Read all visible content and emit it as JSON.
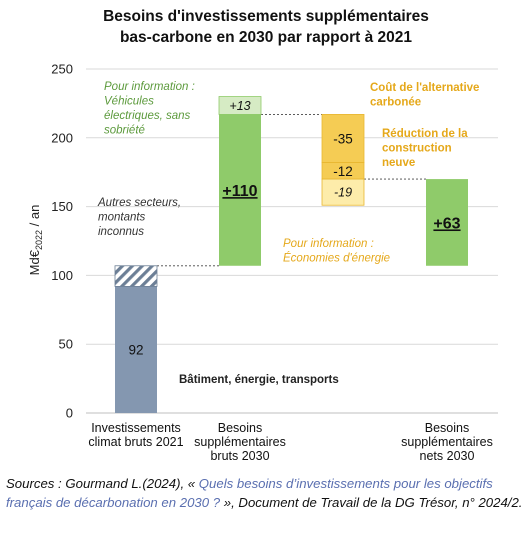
{
  "title_line1": "Besoins d'investissements supplémentaires",
  "title_line2": "bas-carbone en 2030 par rapport à 2021",
  "source": {
    "part1": "Sources : Gourmand L.(2024), « ",
    "link": "Quels besoins d’investissements pour les objectifs français de décarbonation en 2030 ?",
    "part2": " », Document de Travail de la DG Trésor, n° 2024/2."
  },
  "colors": {
    "blue": "#8497b0",
    "green": "#8fcb6a",
    "green_light": "#d6ebc4",
    "orange": "#f5cc54",
    "yellow_light": "#fdecaa",
    "hatch": "#6c7f96",
    "green_text": "#5c9a3c",
    "orange_text": "#e5a81a",
    "grid": "#d9d9d9"
  },
  "chart_data": {
    "type": "bar",
    "subtype": "waterfall",
    "ylabel": "Md€2022 / an",
    "ylabel_main": "Md€",
    "ylabel_sub": "2022",
    "ylabel_rest": " / an",
    "ylim": [
      0,
      250
    ],
    "yticks": [
      0,
      50,
      100,
      150,
      200,
      250
    ],
    "grid": true,
    "categories": [
      [
        "Investissements",
        "climat bruts 2021"
      ],
      [
        "Besoins",
        "supplémentaires",
        "bruts 2030"
      ],
      [
        "",
        ""
      ],
      [
        "Besoins",
        "supplémentaires",
        "nets 2030"
      ]
    ],
    "segments": [
      {
        "cat": 0,
        "base": 0,
        "value": 92,
        "fill": "blue",
        "label": "92",
        "label_style": "normal"
      },
      {
        "cat": 0,
        "base": 92,
        "value": 15,
        "fill": "hatch",
        "label": "",
        "label_style": "none"
      },
      {
        "cat": 1,
        "base": 107,
        "value": 110,
        "fill": "green",
        "label": "+110",
        "label_style": "bold-underline"
      },
      {
        "cat": 1,
        "base": 217,
        "value": 13,
        "fill": "green_light",
        "label": "+13",
        "label_style": "italic"
      },
      {
        "cat": 2,
        "base": 182,
        "value": 35,
        "fill": "orange",
        "label": "-35",
        "label_style": "normal"
      },
      {
        "cat": 2,
        "base": 170,
        "value": 12,
        "fill": "orange",
        "label": "-12",
        "label_style": "normal"
      },
      {
        "cat": 2,
        "base": 151,
        "value": 19,
        "fill": "yellow_light",
        "label": "-19",
        "label_style": "italic"
      },
      {
        "cat": 3,
        "base": 107,
        "value": 63,
        "fill": "green",
        "label": "+63",
        "label_style": "bold-underline"
      }
    ],
    "connectors": [
      {
        "y": 107,
        "from_cat": 0,
        "to_cat": 1
      },
      {
        "y": 217,
        "from_cat": 1,
        "to_cat": 2
      },
      {
        "y": 170,
        "from_cat": 2,
        "to_cat": 3
      }
    ],
    "annotations": [
      {
        "lines": [
          "Pour information :",
          "Véhicules",
          "électriques, sans",
          "sobriété"
        ],
        "style": "italic",
        "color": "green_text"
      },
      {
        "lines": [
          "Autres secteurs,",
          "montants",
          "inconnus"
        ],
        "style": "italic",
        "color": "#333333"
      },
      {
        "lines": [
          "Coût de l'alternative",
          "carbonée"
        ],
        "style": "bold",
        "color": "orange_text"
      },
      {
        "lines": [
          "Réduction de la",
          "construction",
          "neuve"
        ],
        "style": "bold",
        "color": "orange_text"
      },
      {
        "lines": [
          "Pour information :",
          "Économies d'énergie"
        ],
        "style": "italic",
        "color": "orange_text"
      },
      {
        "lines": [
          "Bâtiment, énergie, transports"
        ],
        "style": "bold",
        "color": "#222222"
      }
    ]
  }
}
